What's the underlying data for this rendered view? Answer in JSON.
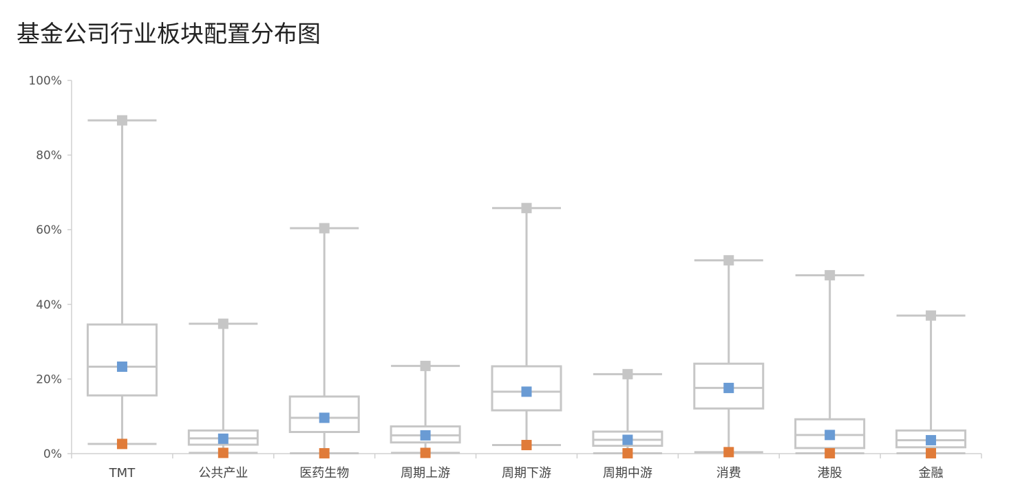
{
  "chart_data": {
    "type": "boxplot",
    "title": "基金公司行业板块配置分布图",
    "xlabel": "",
    "ylabel": "",
    "ylim": [
      0,
      100
    ],
    "yticks": [
      "0%",
      "20%",
      "40%",
      "60%",
      "80%",
      "100%"
    ],
    "categories": [
      "TMT",
      "公共产业",
      "医药生物",
      "周期上游",
      "周期下游",
      "周期中游",
      "消费",
      "港股",
      "金融"
    ],
    "max": [
      89.3,
      34.8,
      60.4,
      23.5,
      65.8,
      21.3,
      51.8,
      47.8,
      37.0
    ],
    "q3": [
      34.6,
      6.2,
      15.3,
      7.3,
      23.4,
      5.9,
      24.1,
      9.2,
      6.2
    ],
    "median": [
      23.3,
      4.1,
      9.6,
      4.9,
      16.6,
      3.7,
      17.6,
      5.0,
      3.6
    ],
    "q1": [
      15.6,
      2.4,
      5.8,
      3.0,
      11.6,
      2.1,
      12.1,
      1.5,
      1.7
    ],
    "min": [
      2.6,
      0.2,
      0.1,
      0.2,
      2.3,
      0.1,
      0.4,
      0.1,
      0.1
    ],
    "mean": [
      23.3,
      4.0,
      9.6,
      4.9,
      16.6,
      3.7,
      17.6,
      5.0,
      3.6
    ],
    "colors": {
      "box": "#c6c6c6",
      "mean": "#6a9bd4",
      "min": "#e07b39",
      "max": "#c6c6c6",
      "axis": "#d0d0d0"
    }
  }
}
